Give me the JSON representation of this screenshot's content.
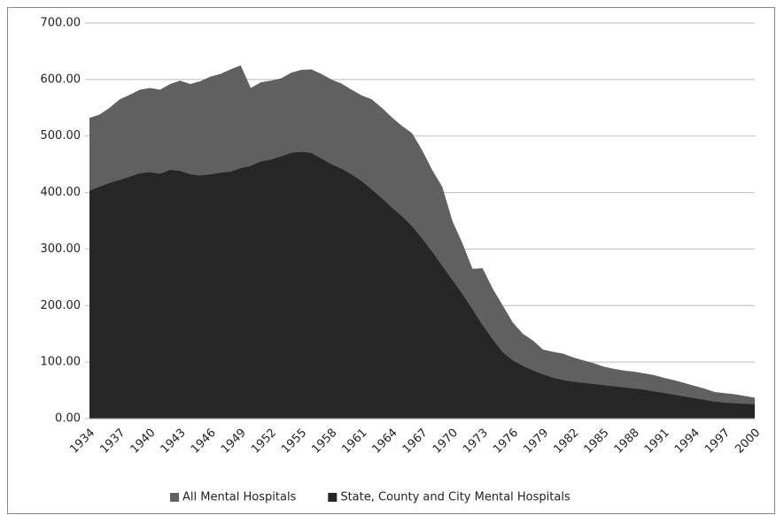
{
  "chart_data": {
    "type": "area",
    "categories": [
      "1934",
      null,
      null,
      "1937",
      null,
      null,
      "1940",
      null,
      null,
      "1943",
      null,
      null,
      "1946",
      null,
      null,
      "1949",
      null,
      null,
      "1952",
      null,
      null,
      "1955",
      null,
      null,
      "1958",
      null,
      null,
      "1961",
      null,
      null,
      "1964",
      null,
      null,
      "1967",
      null,
      null,
      "1970",
      null,
      null,
      "1973",
      null,
      null,
      "1976",
      null,
      null,
      "1979",
      null,
      null,
      "1982",
      null,
      null,
      "1985",
      null,
      null,
      "1988",
      null,
      null,
      "1991",
      null,
      null,
      "1994",
      null,
      null,
      "1997",
      null,
      null,
      "2000"
    ],
    "series": [
      {
        "name": "All Mental Hospitals",
        "color": "#606060",
        "values": [
          532,
          538,
          550,
          565,
          573,
          582,
          585,
          582,
          592,
          598,
          592,
          597,
          605,
          610,
          618,
          625,
          585,
          595,
          598,
          602,
          612,
          617,
          618,
          610,
          600,
          593,
          582,
          572,
          565,
          550,
          533,
          518,
          505,
          475,
          440,
          410,
          350,
          310,
          265,
          266,
          230,
          200,
          170,
          150,
          138,
          122,
          118,
          115,
          108,
          103,
          98,
          92,
          88,
          85,
          83,
          80,
          77,
          72,
          68,
          63,
          58,
          53,
          47,
          45,
          43,
          40,
          37
        ]
      },
      {
        "name": "State, County and City Mental Hospitals",
        "color": "#262626",
        "values": [
          403,
          410,
          417,
          422,
          428,
          434,
          436,
          433,
          440,
          438,
          432,
          430,
          432,
          435,
          437,
          443,
          447,
          455,
          458,
          464,
          470,
          472,
          470,
          460,
          450,
          442,
          432,
          420,
          405,
          390,
          373,
          358,
          340,
          318,
          295,
          270,
          245,
          220,
          193,
          165,
          140,
          117,
          103,
          93,
          85,
          78,
          72,
          68,
          65,
          63,
          61,
          59,
          57,
          55,
          53,
          51,
          48,
          45,
          42,
          39,
          36,
          33,
          30,
          28,
          27,
          26,
          25
        ]
      }
    ],
    "ylim": [
      0,
      700
    ],
    "yticks": [
      {
        "value": 0,
        "label": "0.00"
      },
      {
        "value": 100,
        "label": "100.00"
      },
      {
        "value": 200,
        "label": "200.00"
      },
      {
        "value": 300,
        "label": "300.00"
      },
      {
        "value": 400,
        "label": "400.00"
      },
      {
        "value": 500,
        "label": "500.00"
      },
      {
        "value": 600,
        "label": "600.00"
      },
      {
        "value": 700,
        "label": "700.00"
      }
    ],
    "grid": true,
    "legend": "bottom"
  }
}
